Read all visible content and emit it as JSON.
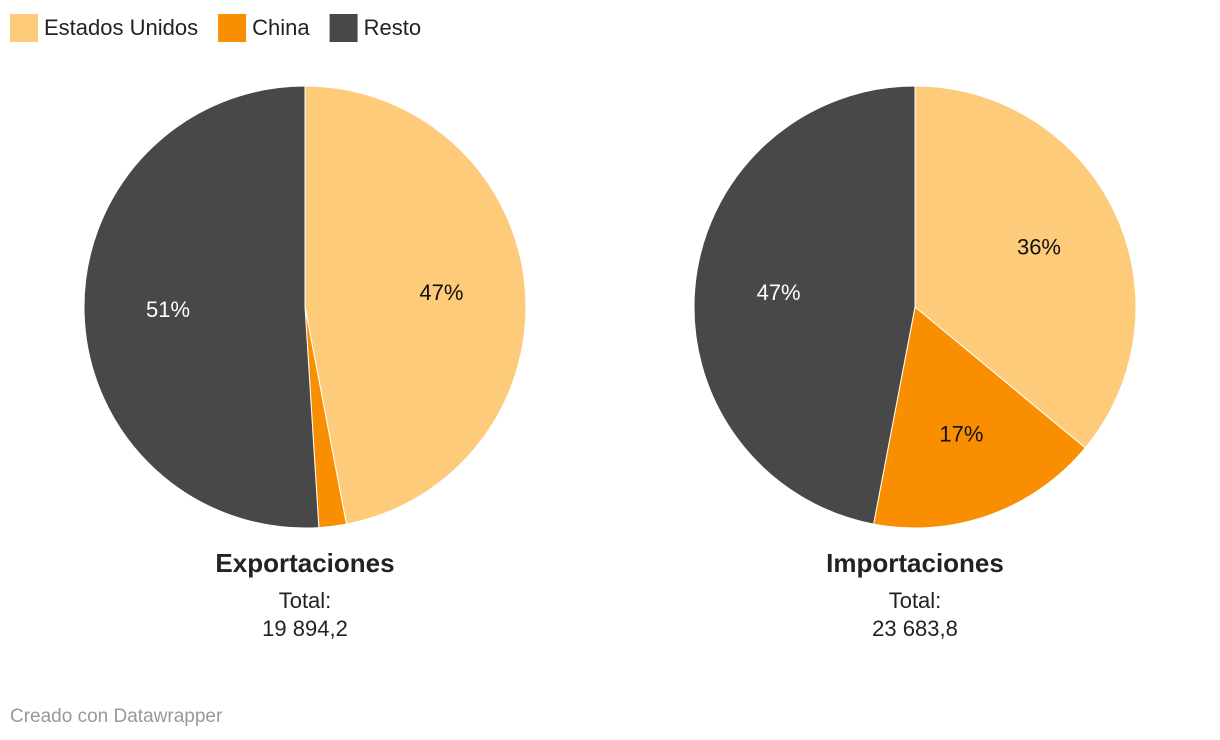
{
  "chart_data": [
    {
      "type": "pie",
      "title": "Exportaciones",
      "subtitle": "Total:",
      "total": "19 894,2",
      "categories": [
        "Estados Unidos",
        "China",
        "Resto"
      ],
      "values": [
        47,
        2,
        51
      ],
      "value_labels": [
        "47%",
        null,
        "51%"
      ],
      "colors": [
        "#fecb7a",
        "#f98e00",
        "#484848"
      ]
    },
    {
      "type": "pie",
      "title": "Importaciones",
      "subtitle": "Total:",
      "total": "23 683,8",
      "categories": [
        "Estados Unidos",
        "China",
        "Resto"
      ],
      "values": [
        36,
        17,
        47
      ],
      "value_labels": [
        "36%",
        "17%",
        "47%"
      ],
      "colors": [
        "#fecb7a",
        "#f98e00",
        "#484848"
      ]
    }
  ],
  "footer": "Creado con Datawrapper"
}
